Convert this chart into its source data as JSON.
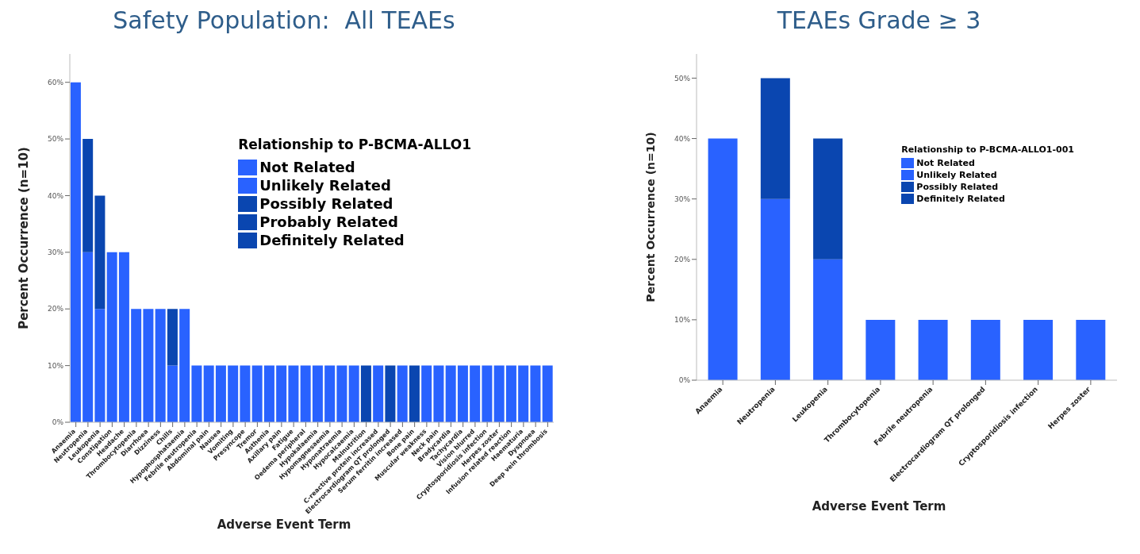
{
  "chart_data": [
    {
      "type": "bar",
      "title": "Safety Population:  All TEAEs",
      "xlabel": "Adverse Event Term",
      "ylabel": "Percent Occurrence (n=10)",
      "legend_title": "Relationship to P-BCMA-ALLO1",
      "stacked": true,
      "legend": "top right",
      "grid": false,
      "categories": [
        "Anaemia",
        "Neutropenia",
        "Leukopenia",
        "Constipation",
        "Headache",
        "Thrombocytopenia",
        "Diarrhoea",
        "Dizziness",
        "Chills",
        "Hypophosphataemia",
        "Febrile neutropenia",
        "Abdominal pain",
        "Nausea",
        "Vomiting",
        "Presyncope",
        "Tremor",
        "Asthenia",
        "Axillary pain",
        "Fatigue",
        "Oedema peripheral",
        "Hypokalaemia",
        "Hypomagnesaemia",
        "Hyponatraemia",
        "Hypocalcaemia",
        "Malnutrition",
        "C-reactive protein increased",
        "Electrocardiogram QT prolonged",
        "Serum ferritin increased",
        "Bone pain",
        "Muscular weakness",
        "Neck pain",
        "Bradycardia",
        "Tachycardia",
        "Vision blurred",
        "Cryptosporidiosis infection",
        "Herpes zoster",
        "Infusion related reaction",
        "Haematuria",
        "Dyspnoea",
        "Deep vein thrombosis"
      ],
      "series": [
        {
          "name": "Not Related",
          "color": "#2962ff",
          "values": [
            60,
            30,
            20,
            30,
            30,
            20,
            20,
            20,
            10,
            20,
            10,
            10,
            10,
            10,
            10,
            10,
            10,
            10,
            10,
            10,
            10,
            10,
            10,
            10,
            0,
            10,
            0,
            10,
            0,
            10,
            10,
            10,
            10,
            10,
            10,
            10,
            10,
            10,
            10,
            10
          ]
        },
        {
          "name": "Unlikely Related",
          "color": "#2962ff",
          "values": [
            0,
            0,
            0,
            0,
            0,
            0,
            0,
            0,
            0,
            0,
            0,
            0,
            0,
            0,
            0,
            0,
            0,
            0,
            0,
            0,
            0,
            0,
            0,
            0,
            0,
            0,
            0,
            0,
            0,
            0,
            0,
            0,
            0,
            0,
            0,
            0,
            0,
            0,
            0,
            0
          ]
        },
        {
          "name": "Possibly Related",
          "color": "#0a46b0",
          "values": [
            0,
            20,
            20,
            0,
            0,
            0,
            0,
            0,
            10,
            0,
            0,
            0,
            0,
            0,
            0,
            0,
            0,
            0,
            0,
            0,
            0,
            0,
            0,
            0,
            10,
            0,
            10,
            0,
            10,
            0,
            0,
            0,
            0,
            0,
            0,
            0,
            0,
            0,
            0,
            0
          ]
        },
        {
          "name": "Probably Related",
          "color": "#0a46b0",
          "values": [
            0,
            0,
            0,
            0,
            0,
            0,
            0,
            0,
            0,
            0,
            0,
            0,
            0,
            0,
            0,
            0,
            0,
            0,
            0,
            0,
            0,
            0,
            0,
            0,
            0,
            0,
            0,
            0,
            0,
            0,
            0,
            0,
            0,
            0,
            0,
            0,
            0,
            0,
            0,
            0
          ]
        },
        {
          "name": "Definitely Related",
          "color": "#0a46b0",
          "values": [
            0,
            0,
            0,
            0,
            0,
            0,
            0,
            0,
            0,
            0,
            0,
            0,
            0,
            0,
            0,
            0,
            0,
            0,
            0,
            0,
            0,
            0,
            0,
            0,
            0,
            0,
            0,
            0,
            0,
            0,
            0,
            0,
            0,
            0,
            0,
            0,
            0,
            0,
            0,
            0
          ]
        }
      ],
      "ylim": [
        0,
        65
      ],
      "yticks": [
        {
          "value": 0,
          "label": "0%"
        },
        {
          "value": 10,
          "label": "10%"
        },
        {
          "value": 20,
          "label": "20%"
        },
        {
          "value": 30,
          "label": "30%"
        },
        {
          "value": 40,
          "label": "40%"
        },
        {
          "value": 50,
          "label": "50%"
        },
        {
          "value": 60,
          "label": "60%"
        }
      ]
    },
    {
      "type": "bar",
      "title": "TEAEs Grade ≥ 3",
      "xlabel": "Adverse Event Term",
      "ylabel": "Percent Occurrence (n=10)",
      "legend_title": "Relationship to P-BCMA-ALLO1-001",
      "stacked": true,
      "legend": "top right",
      "grid": false,
      "categories": [
        "Anaemia",
        "Neutropenia",
        "Leukopenia",
        "Thrombocytopenia",
        "Febrile neutropenia",
        "Electrocardiogram QT prolonged",
        "Cryptosporidiosis infection",
        "Herpes zoster"
      ],
      "series": [
        {
          "name": "Not Related",
          "color": "#2962ff",
          "values": [
            40,
            30,
            20,
            10,
            10,
            10,
            10,
            10
          ]
        },
        {
          "name": "Unlikely Related",
          "color": "#2962ff",
          "values": [
            0,
            0,
            0,
            0,
            0,
            0,
            0,
            0
          ]
        },
        {
          "name": "Possibly Related",
          "color": "#0a46b0",
          "values": [
            0,
            20,
            20,
            0,
            0,
            0,
            0,
            0
          ]
        },
        {
          "name": "Definitely Related",
          "color": "#0a46b0",
          "values": [
            0,
            0,
            0,
            0,
            0,
            0,
            0,
            0
          ]
        }
      ],
      "ylim": [
        0,
        54
      ],
      "yticks": [
        {
          "value": 0,
          "label": "0%"
        },
        {
          "value": 10,
          "label": "10%"
        },
        {
          "value": 20,
          "label": "20%"
        },
        {
          "value": 30,
          "label": "30%"
        },
        {
          "value": 40,
          "label": "40%"
        },
        {
          "value": 50,
          "label": "50%"
        }
      ]
    }
  ]
}
